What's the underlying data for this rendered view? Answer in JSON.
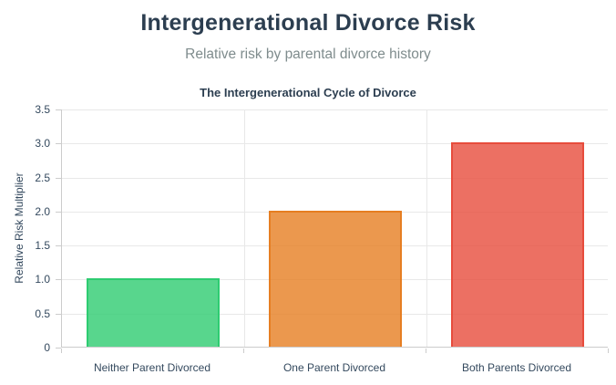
{
  "header": {
    "title": "Intergenerational Divorce Risk",
    "subtitle": "Relative risk by parental divorce history"
  },
  "chart_data": {
    "type": "bar",
    "title": "The Intergenerational Cycle of Divorce",
    "categories": [
      "Neither Parent Divorced",
      "One Parent Divorced",
      "Both Parents Divorced"
    ],
    "values": [
      1.0,
      2.0,
      3.0
    ],
    "xlabel": "",
    "ylabel": "Relative Risk Multiplier",
    "ylim": [
      0,
      3.5
    ],
    "ytick_step": 0.5,
    "ytick_labels": [
      "0",
      "0.5",
      "1.0",
      "1.5",
      "2.0",
      "2.5",
      "3.0",
      "3.5"
    ],
    "grid": true,
    "legend": "none",
    "bar_colors": [
      {
        "fill": "rgba(46, 204, 113, 0.8)",
        "border": "#2ecc71"
      },
      {
        "fill": "rgba(230, 126, 34, 0.8)",
        "border": "#e67e22"
      },
      {
        "fill": "rgba(231, 76, 60, 0.8)",
        "border": "#e74c3c"
      }
    ],
    "style": {
      "title_color": "#2c3e50",
      "subtitle_color": "#7f8c8d",
      "tick_label_color": "#34495e",
      "gridline_color": "#e8e8e8",
      "axis_line_color": "#cccccc",
      "background": "#ffffff"
    }
  }
}
